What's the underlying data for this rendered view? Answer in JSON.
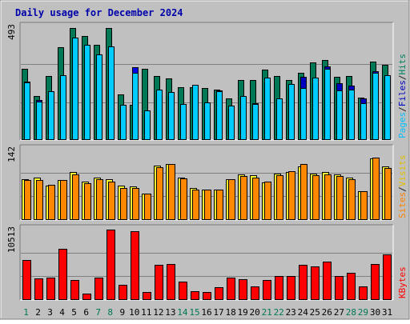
{
  "chart_data": {
    "type": "bar",
    "title": "Daily usage for December 2024",
    "categories": [
      "1",
      "2",
      "3",
      "4",
      "5",
      "6",
      "7",
      "8",
      "9",
      "10",
      "11",
      "12",
      "13",
      "14",
      "15",
      "16",
      "17",
      "18",
      "19",
      "20",
      "21",
      "22",
      "23",
      "24",
      "25",
      "26",
      "27",
      "28",
      "29",
      "30",
      "31"
    ],
    "weekend_days": [
      1,
      7,
      8,
      14,
      15,
      21,
      22,
      28,
      29
    ],
    "highlight_day": 10,
    "panels": [
      {
        "id": "top",
        "ymax_label": "493",
        "ymax": 493,
        "right_labels": [
          {
            "text": "Pages",
            "color": "#00c0ff"
          },
          {
            "text": "/",
            "color": "#1a1a1a"
          },
          {
            "text": "Files",
            "color": "#0000c0"
          },
          {
            "text": "/",
            "color": "#1a1a1a"
          },
          {
            "text": "Hits",
            "color": "#008060"
          }
        ],
        "series": [
          {
            "name": "Hits",
            "color": "#007755",
            "values": [
              310,
              190,
              277,
              403,
              487,
              450,
              412,
              487,
              197,
              153,
              310,
              277,
              266,
              229,
              229,
              226,
              219,
              180,
              262,
              262,
              307,
              277,
              262,
              292,
              336,
              347,
              273,
              279,
              185,
              340,
              325
            ]
          },
          {
            "name": "Files",
            "color": "#0000c0",
            "values": [
              253,
              172,
              211,
              281,
              338,
              361,
              292,
              380,
              150,
              316,
              129,
              214,
              208,
              156,
              235,
              161,
              214,
              150,
              190,
              159,
              228,
              180,
              180,
              274,
              249,
              318,
              248,
              236,
              179,
              298,
              251
            ]
          },
          {
            "name": "Pages",
            "color": "#00ccff",
            "values": [
              250,
              168,
              211,
              281,
              443,
              414,
              370,
              406,
              154,
              290,
              130,
              217,
              209,
              156,
              238,
              162,
              212,
              150,
              190,
              156,
              272,
              180,
              244,
              226,
              272,
              310,
              216,
              218,
              160,
              290,
              281
            ]
          }
        ]
      },
      {
        "id": "middle",
        "ymax_label": "142",
        "ymax": 142,
        "right_labels": [
          {
            "text": "Sites",
            "color": "#ff8000"
          },
          {
            "text": "/",
            "color": "#1a1a1a"
          },
          {
            "text": "Visits",
            "color": "#e0c000"
          }
        ],
        "series": [
          {
            "name": "Visits",
            "color": "#ffff33",
            "values": [
              81,
              84,
              69,
              79,
              96,
              76,
              84,
              82,
              68,
              67,
              52,
              108,
              112,
              85,
              64,
              60,
              60,
              82,
              91,
              89,
              75,
              93,
              96,
              107,
              93,
              96,
              91,
              84,
              58,
              123,
              107
            ]
          },
          {
            "name": "Sites",
            "color": "#ff8800",
            "values": [
              79,
              79,
              70,
              80,
              91,
              74,
              81,
              77,
              64,
              64,
              53,
              106,
              111,
              83,
              60,
              60,
              60,
              81,
              87,
              85,
              76,
              90,
              97,
              112,
              89,
              91,
              88,
              82,
              58,
              124,
              103
            ]
          }
        ]
      },
      {
        "id": "bottom",
        "ymax_label": "10513",
        "ymax": 10513,
        "right_labels": [
          {
            "text": "KBytes",
            "color": "#ff0000"
          }
        ],
        "series": [
          {
            "name": "KBytes",
            "color": "#ff0000",
            "values": [
              5900,
              3200,
              3300,
              7600,
              2950,
              900,
              3300,
              10400,
              2200,
              10100,
              1200,
              5200,
              5300,
              2700,
              1300,
              1200,
              1900,
              3300,
              3100,
              2000,
              2900,
              3600,
              3500,
              5200,
              5000,
              5700,
              3500,
              4000,
              2000,
              5300,
              6700
            ]
          }
        ]
      }
    ]
  }
}
